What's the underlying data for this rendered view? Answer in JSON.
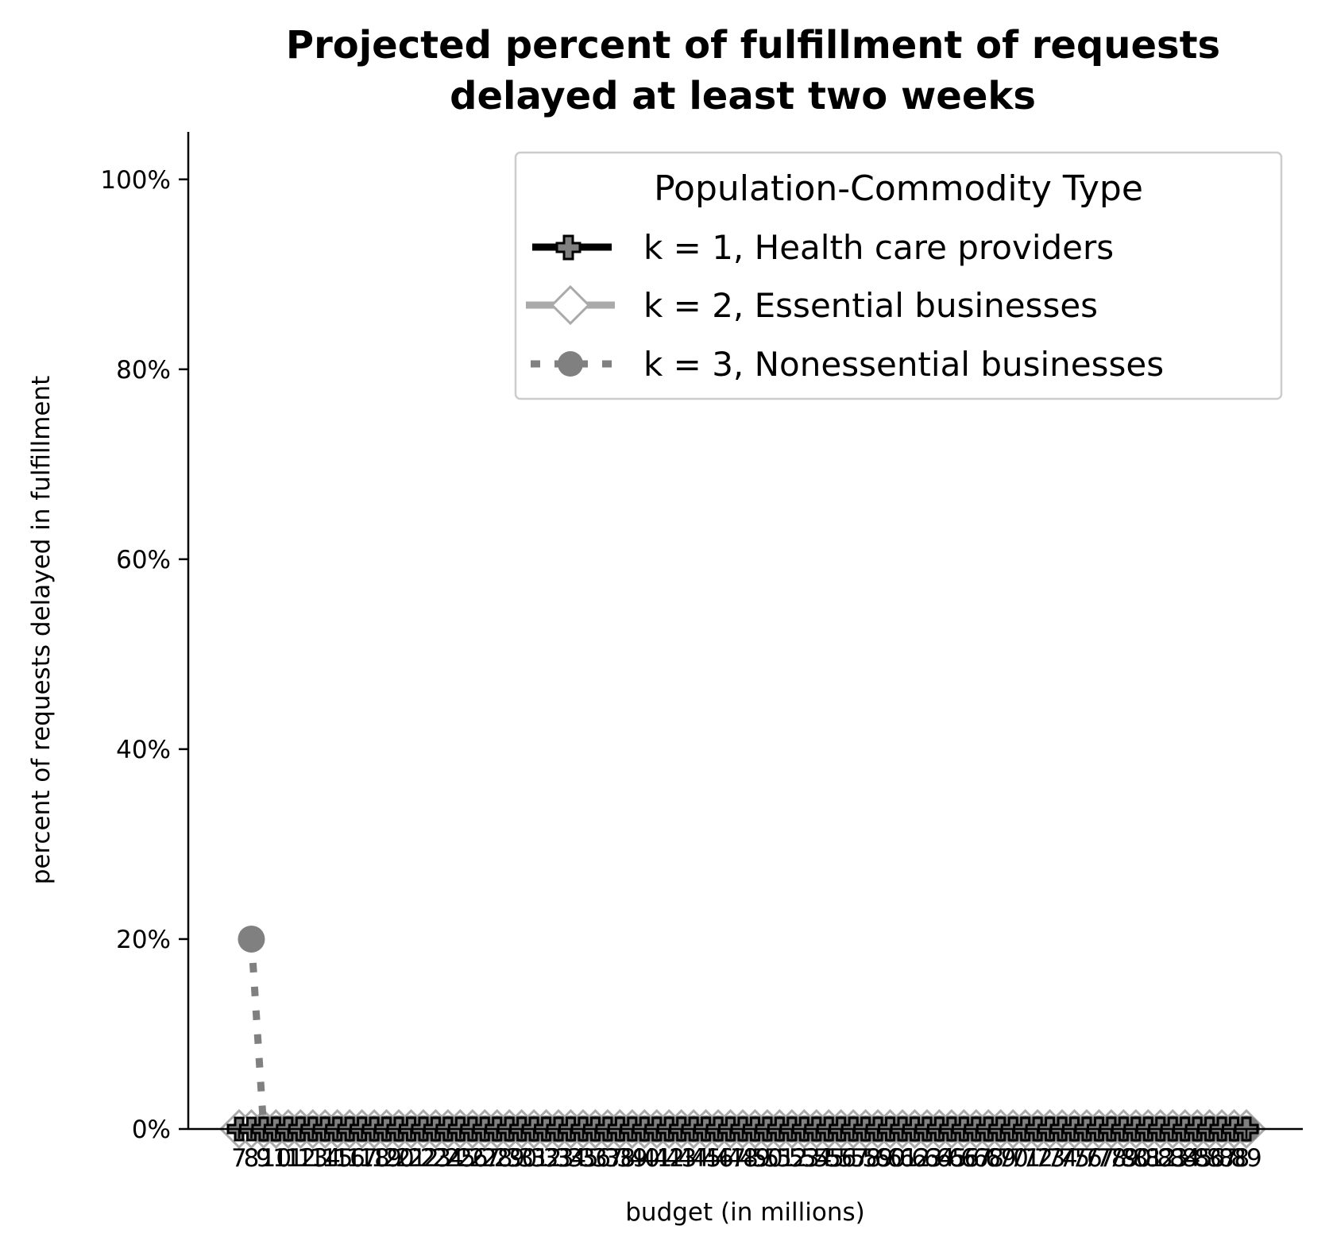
{
  "chart_data": {
    "type": "line",
    "title_lines": [
      "Projected percent of fulfillment of requests",
      "delayed at least two weeks"
    ],
    "xlabel": "budget (in millions)",
    "ylabel": "percent of requests delayed in fulfillment",
    "x": [
      7,
      8,
      9,
      10,
      11,
      12,
      13,
      14,
      15,
      16,
      17,
      18,
      19,
      20,
      21,
      22,
      23,
      24,
      25,
      26,
      27,
      28,
      29,
      30,
      31,
      32,
      33,
      34,
      35,
      36,
      37,
      38,
      39,
      40,
      41,
      42,
      43,
      44,
      45,
      46,
      47,
      48,
      49,
      50,
      51,
      52,
      53,
      54,
      55,
      56,
      57,
      58,
      59,
      60,
      61,
      62,
      63,
      64,
      65,
      66,
      67,
      68,
      69,
      70,
      71,
      72,
      73,
      74,
      75,
      76,
      77,
      78,
      79,
      80,
      81,
      82,
      83,
      84,
      85,
      86,
      87,
      88,
      89
    ],
    "ylim": [
      0,
      105
    ],
    "yticks": [
      0,
      20,
      40,
      60,
      80,
      100
    ],
    "ytick_labels": [
      "0%",
      "20%",
      "40%",
      "60%",
      "80%",
      "100%"
    ],
    "grid": false,
    "legend": {
      "title": "Population-Commodity Type",
      "placement": "top-right"
    },
    "series": [
      {
        "name": "k = 1, Health care providers",
        "color": "#000000",
        "marker": "plus",
        "linestyle": "solid",
        "values": [
          0,
          0,
          0,
          0,
          0,
          0,
          0,
          0,
          0,
          0,
          0,
          0,
          0,
          0,
          0,
          0,
          0,
          0,
          0,
          0,
          0,
          0,
          0,
          0,
          0,
          0,
          0,
          0,
          0,
          0,
          0,
          0,
          0,
          0,
          0,
          0,
          0,
          0,
          0,
          0,
          0,
          0,
          0,
          0,
          0,
          0,
          0,
          0,
          0,
          0,
          0,
          0,
          0,
          0,
          0,
          0,
          0,
          0,
          0,
          0,
          0,
          0,
          0,
          0,
          0,
          0,
          0,
          0,
          0,
          0,
          0,
          0,
          0,
          0,
          0,
          0,
          0,
          0,
          0,
          0,
          0,
          0,
          0
        ]
      },
      {
        "name": "k = 2, Essential businesses",
        "color": "#aaaaaa",
        "marker": "diamond",
        "linestyle": "solid",
        "values": [
          0,
          0,
          0,
          0,
          0,
          0,
          0,
          0,
          0,
          0,
          0,
          0,
          0,
          0,
          0,
          0,
          0,
          0,
          0,
          0,
          0,
          0,
          0,
          0,
          0,
          0,
          0,
          0,
          0,
          0,
          0,
          0,
          0,
          0,
          0,
          0,
          0,
          0,
          0,
          0,
          0,
          0,
          0,
          0,
          0,
          0,
          0,
          0,
          0,
          0,
          0,
          0,
          0,
          0,
          0,
          0,
          0,
          0,
          0,
          0,
          0,
          0,
          0,
          0,
          0,
          0,
          0,
          0,
          0,
          0,
          0,
          0,
          0,
          0,
          0,
          0,
          0,
          0,
          0,
          0,
          0,
          0,
          0
        ]
      },
      {
        "name": "k = 3, Nonessential businesses",
        "color": "#808080",
        "marker": "circle",
        "linestyle": "dotted",
        "values": [
          null,
          20,
          0,
          0,
          0,
          0,
          0,
          0,
          0,
          0,
          0,
          0,
          0,
          0,
          0,
          0,
          0,
          0,
          0,
          0,
          0,
          0,
          0,
          0,
          0,
          0,
          0,
          0,
          0,
          0,
          0,
          0,
          0,
          0,
          0,
          0,
          0,
          0,
          0,
          0,
          0,
          0,
          0,
          0,
          0,
          0,
          0,
          0,
          0,
          0,
          0,
          0,
          0,
          0,
          0,
          0,
          0,
          0,
          0,
          0,
          0,
          0,
          0,
          0,
          0,
          0,
          0,
          0,
          0,
          0,
          0,
          0,
          0,
          0,
          0,
          0,
          0,
          0,
          0,
          0,
          0,
          0,
          0
        ]
      }
    ]
  }
}
